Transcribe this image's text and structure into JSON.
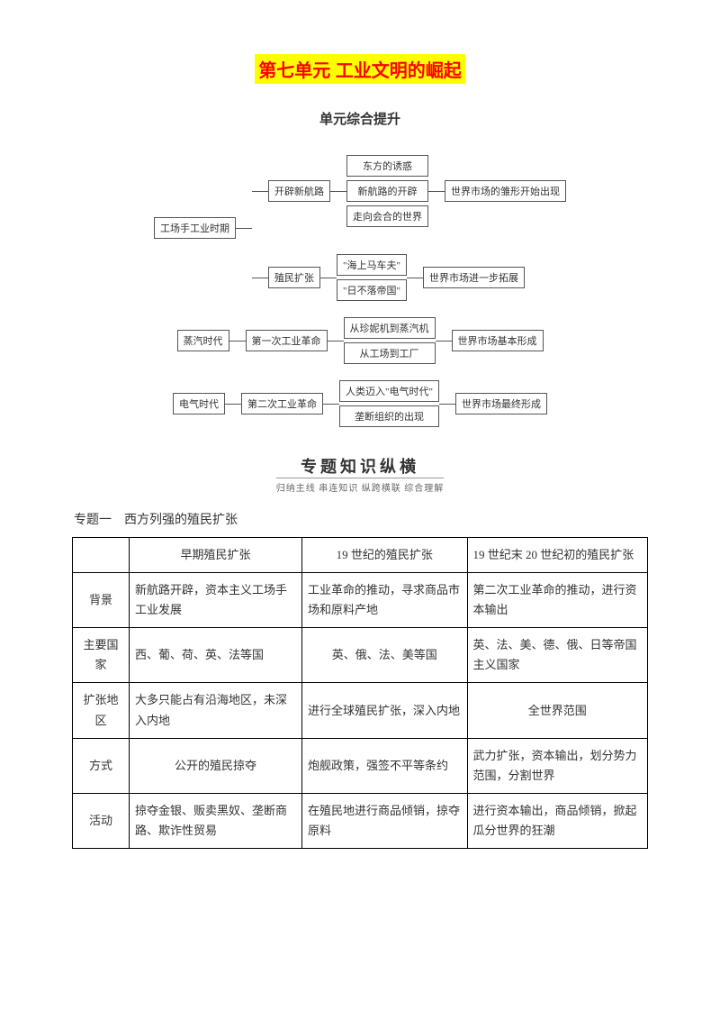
{
  "title": "第七单元 工业文明的崛起",
  "subtitle": "单元综合提升",
  "flowchart": {
    "row1": {
      "left": "工场手工业时期",
      "mid": [
        "开辟新航路",
        "殖民扩张"
      ],
      "sub1": [
        "东方的诱惑",
        "新航路的开辟",
        "走向会合的世界"
      ],
      "sub2": [
        "\"海上马车夫\"",
        "\"日不落帝国\""
      ],
      "right1": "世界市场的雏形开始出现",
      "right2": "世界市场进一步拓展"
    },
    "row2": {
      "left": "蒸汽时代",
      "mid": "第一次工业革命",
      "sub": [
        "从珍妮机到蒸汽机",
        "从工场到工厂"
      ],
      "right": "世界市场基本形成"
    },
    "row3": {
      "left": "电气时代",
      "mid": "第二次工业革命",
      "sub": [
        "人类迈入\"电气时代\"",
        "垄断组织的出现"
      ],
      "right": "世界市场最终形成"
    }
  },
  "section": {
    "big": "专题知识纵横",
    "small": "归纳主线 串连知识 纵跨横联 综合理解"
  },
  "topic1": "专题一　西方列强的殖民扩张",
  "table": {
    "headers": [
      "",
      "早期殖民扩张",
      "19 世纪的殖民扩张",
      "19 世纪末 20 世纪初的殖民扩张"
    ],
    "rows": [
      {
        "h": "背景",
        "c": [
          "新航路开辟，资本主义工场手工业发展",
          "工业革命的推动，寻求商品市场和原料产地",
          "第二次工业革命的推动，进行资本输出"
        ]
      },
      {
        "h": "主要国家",
        "c": [
          "西、葡、荷、英、法等国",
          "英、俄、法、美等国",
          "英、法、美、德、俄、日等帝国主义国家"
        ]
      },
      {
        "h": "扩张地区",
        "c": [
          "大多只能占有沿海地区，未深入内地",
          "进行全球殖民扩张，深入内地",
          "全世界范围"
        ]
      },
      {
        "h": "方式",
        "c": [
          "公开的殖民掠夺",
          "炮舰政策，强签不平等条约",
          "武力扩张，资本输出，划分势力范围，分割世界"
        ]
      },
      {
        "h": "活动",
        "c": [
          "掠夺金银、贩卖黑奴、垄断商路、欺诈性贸易",
          "在殖民地进行商品倾销，掠夺原料",
          "进行资本输出，商品倾销，掀起瓜分世界的狂潮"
        ]
      }
    ]
  }
}
